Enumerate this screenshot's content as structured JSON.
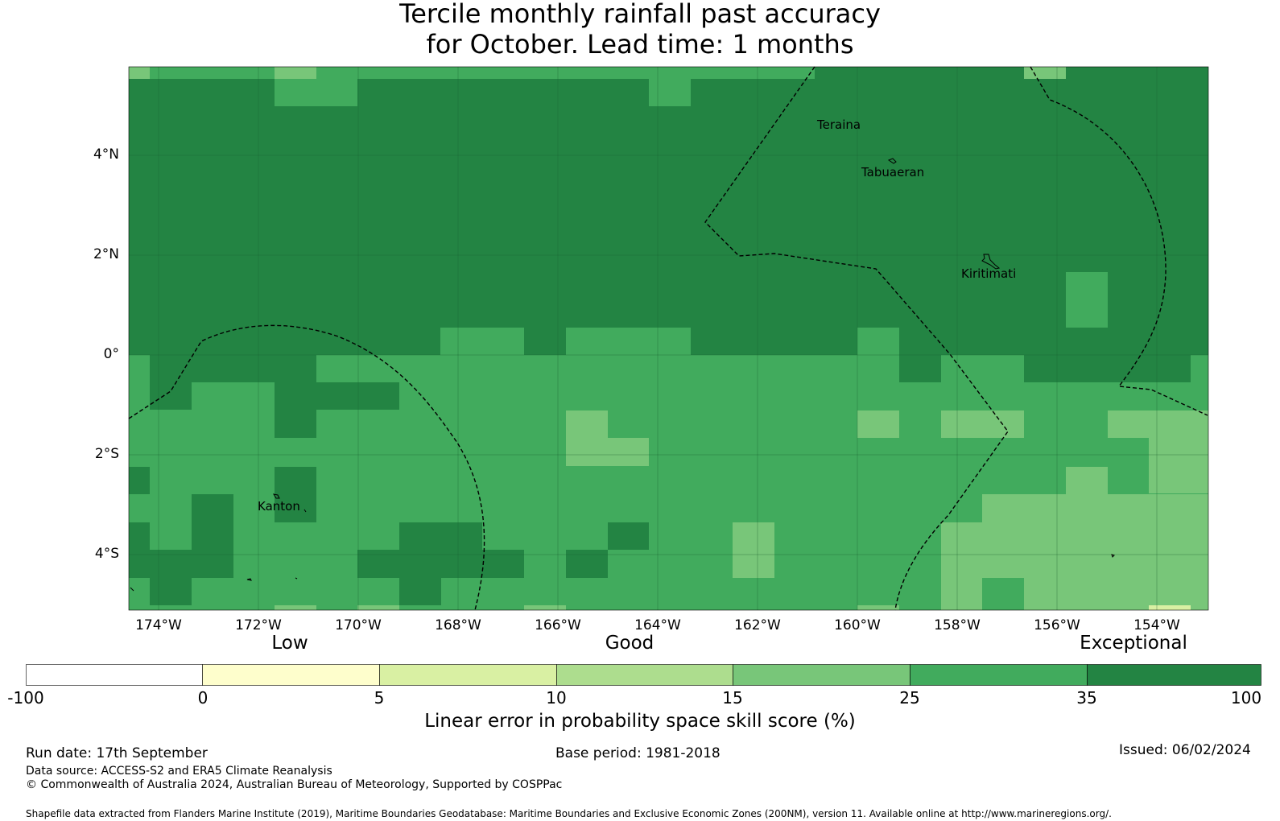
{
  "title": {
    "line1": "Tercile monthly rainfall past accuracy",
    "line2": "for October. Lead time: 1 months"
  },
  "map": {
    "lat_labels": [
      "4°N",
      "2°N",
      "0°",
      "2°S",
      "4°S"
    ],
    "lon_labels": [
      "174°W",
      "172°W",
      "170°W",
      "168°W",
      "166°W",
      "164°W",
      "162°W",
      "160°W",
      "158°W",
      "156°W",
      "154°W"
    ],
    "places": [
      "Teraina",
      "Tabuaeran",
      "Kiritimati",
      "Kanton"
    ]
  },
  "colorbar": {
    "categories": [
      "Low",
      "Good",
      "Exceptional"
    ],
    "tick_labels": [
      "-100",
      "0",
      "5",
      "10",
      "15",
      "25",
      "35",
      "100"
    ],
    "colors": [
      "#ffffff",
      "#fefecc",
      "#d9f0a3",
      "#addd8e",
      "#78c679",
      "#41ab5d",
      "#238443"
    ],
    "title": "Linear error in probability space skill score (%)"
  },
  "footer": {
    "run_date": "Run date: 17th September",
    "base_period": "Base period: 1981-2018",
    "issued": "Issued: 06/02/2024",
    "data_source": "Data source: ACCESS-S2 and ERA5 Climate Reanalysis",
    "copyright": "© Commonwealth of Australia 2024, Australian Bureau of Meteorology, Supported by COSPPac",
    "shapefile": "Shapefile data extracted from Flanders Marine Institute (2019), Maritime Boundaries Geodatabase: Maritime Boundaries and Exclusive Economic Zones (200NM), version 11. Available online at http://www.marineregions.org/."
  }
}
